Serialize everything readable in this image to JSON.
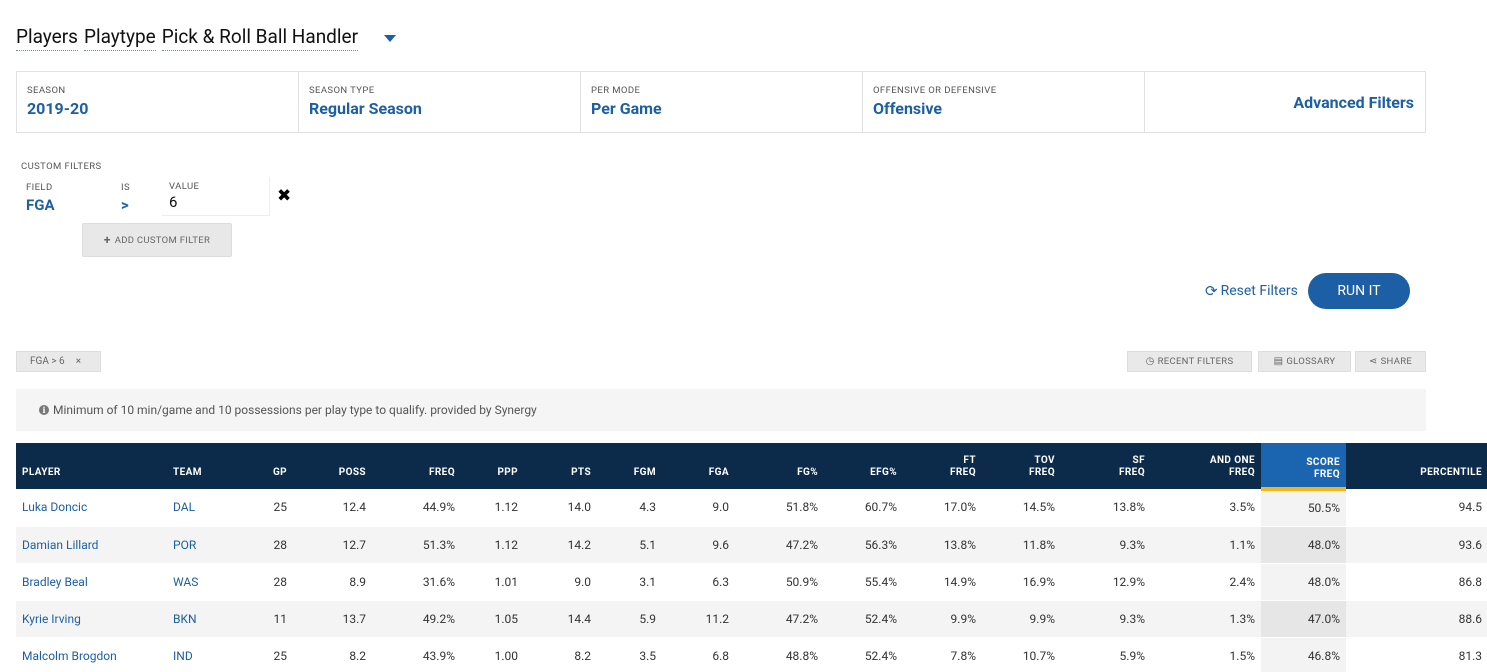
{
  "title": {
    "segments": [
      "Players",
      "Playtype",
      "Pick & Roll Ball Handler"
    ]
  },
  "filters": [
    {
      "label": "SEASON",
      "value": "2019-20"
    },
    {
      "label": "SEASON TYPE",
      "value": "Regular Season"
    },
    {
      "label": "PER MODE",
      "value": "Per Game"
    },
    {
      "label": "OFFENSIVE OR DEFENSIVE",
      "value": "Offensive"
    }
  ],
  "advanced_filters_label": "Advanced Filters",
  "custom_filters": {
    "label": "CUSTOM FILTERS",
    "field_label": "FIELD",
    "field_value": "FGA",
    "is_label": "IS",
    "is_value": ">",
    "value_label": "VALUE",
    "value": "6",
    "remove_icon": "✖",
    "add_button_label": "ADD CUSTOM FILTER"
  },
  "actions": {
    "reset_label": "Reset Filters",
    "run_label": "RUN IT"
  },
  "active_chip": {
    "label": "FGA > 6",
    "close": "×"
  },
  "toolbar": {
    "recent_filters": "RECENT FILTERS",
    "glossary": "GLOSSARY",
    "share": "SHARE"
  },
  "notice": "Minimum of 10 min/game and 10 possessions per play type to qualify. provided by Synergy",
  "table": {
    "columns": [
      {
        "line1": "",
        "line2": "PLAYER"
      },
      {
        "line1": "",
        "line2": "TEAM"
      },
      {
        "line1": "",
        "line2": "GP"
      },
      {
        "line1": "",
        "line2": "POSS"
      },
      {
        "line1": "",
        "line2": "FREQ"
      },
      {
        "line1": "",
        "line2": "PPP"
      },
      {
        "line1": "",
        "line2": "PTS"
      },
      {
        "line1": "",
        "line2": "FGM"
      },
      {
        "line1": "",
        "line2": "FGA"
      },
      {
        "line1": "",
        "line2": "FG%"
      },
      {
        "line1": "",
        "line2": "EFG%"
      },
      {
        "line1": "FT",
        "line2": "FREQ"
      },
      {
        "line1": "TOV",
        "line2": "FREQ"
      },
      {
        "line1": "SF",
        "line2": "FREQ"
      },
      {
        "line1": "AND ONE",
        "line2": "FREQ"
      },
      {
        "line1": "SCORE",
        "line2": "FREQ"
      },
      {
        "line1": "",
        "line2": "PERCENTILE"
      }
    ],
    "rows": [
      [
        "Luka Doncic",
        "DAL",
        "25",
        "12.4",
        "44.9%",
        "1.12",
        "14.0",
        "4.3",
        "9.0",
        "51.8%",
        "60.7%",
        "17.0%",
        "14.5%",
        "13.8%",
        "3.5%",
        "50.5%",
        "94.5"
      ],
      [
        "Damian Lillard",
        "POR",
        "28",
        "12.7",
        "51.3%",
        "1.12",
        "14.2",
        "5.1",
        "9.6",
        "47.2%",
        "56.3%",
        "13.8%",
        "11.8%",
        "9.3%",
        "1.1%",
        "48.0%",
        "93.6"
      ],
      [
        "Bradley Beal",
        "WAS",
        "28",
        "8.9",
        "31.6%",
        "1.01",
        "9.0",
        "3.1",
        "6.3",
        "50.9%",
        "55.4%",
        "14.9%",
        "16.9%",
        "12.9%",
        "2.4%",
        "48.0%",
        "86.8"
      ],
      [
        "Kyrie Irving",
        "BKN",
        "11",
        "13.7",
        "49.2%",
        "1.05",
        "14.4",
        "5.9",
        "11.2",
        "47.2%",
        "52.4%",
        "9.9%",
        "9.9%",
        "9.3%",
        "1.3%",
        "47.0%",
        "88.6"
      ],
      [
        "Malcolm Brogdon",
        "IND",
        "25",
        "8.2",
        "43.9%",
        "1.00",
        "8.2",
        "3.5",
        "6.8",
        "48.8%",
        "52.4%",
        "7.8%",
        "10.7%",
        "5.9%",
        "1.5%",
        "46.8%",
        "81.3"
      ]
    ]
  }
}
